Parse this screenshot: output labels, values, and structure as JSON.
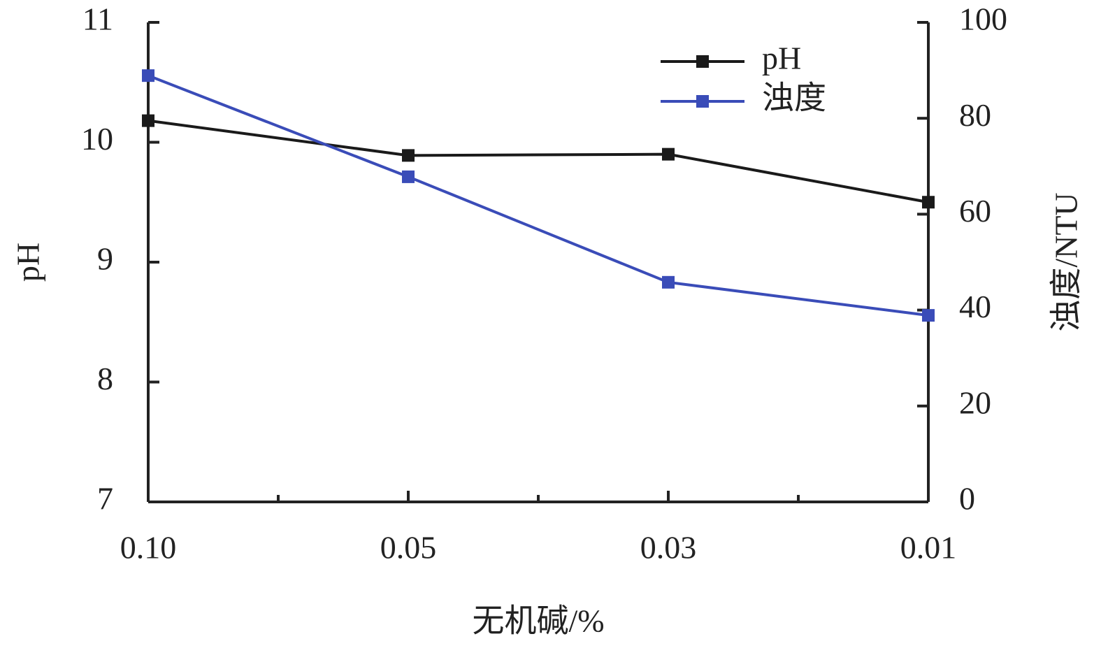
{
  "chart_data": {
    "type": "line",
    "x_label": "无机碱/%",
    "y_label": "pH",
    "y2_label": "浊度/NTU",
    "categories": [
      "0.10",
      "0.05",
      "0.03",
      "0.01"
    ],
    "ylim": [
      7,
      11
    ],
    "yticks": [
      7,
      8,
      9,
      10,
      11
    ],
    "y2lim": [
      0,
      100
    ],
    "y2ticks": [
      0,
      20,
      40,
      60,
      80,
      100
    ],
    "legend": "upper right",
    "series": [
      {
        "name": "pH",
        "color": "#1a1a1a",
        "values": [
          10.18,
          9.89,
          9.9,
          9.5
        ]
      },
      {
        "name": "浊度",
        "color": "#3a4cb8",
        "axis": "y2",
        "values": [
          88.9,
          67.8,
          45.8,
          38.9
        ]
      }
    ]
  }
}
